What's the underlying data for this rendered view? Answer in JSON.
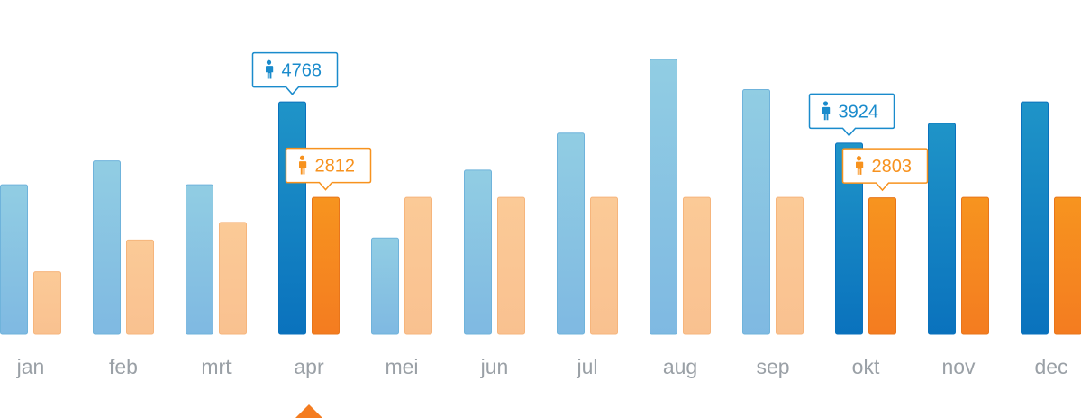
{
  "chart_data": {
    "type": "bar",
    "categories": [
      "jan",
      "feb",
      "mrt",
      "apr",
      "mei",
      "jun",
      "jul",
      "aug",
      "sep",
      "okt",
      "nov",
      "dec"
    ],
    "series": [
      {
        "color": "#1a8bcc",
        "values": [
          3070,
          3560,
          3070,
          4768,
          1980,
          3370,
          4130,
          5640,
          5020,
          3924,
          4330,
          4770
        ]
      },
      {
        "color": "#f7921e",
        "values": [
          1290,
          1940,
          2300,
          2812,
          2812,
          2812,
          2812,
          2812,
          2812,
          2803,
          2812,
          2812
        ]
      }
    ],
    "ylim": [
      0,
      6700
    ],
    "grid": false,
    "highlighted_categories": [
      "apr",
      "okt",
      "nov",
      "dec"
    ],
    "selected_category": "apr",
    "callouts": [
      {
        "category": "apr",
        "series": 0,
        "label": "4768",
        "icon": "person-icon"
      },
      {
        "category": "apr",
        "series": 1,
        "label": "2812",
        "icon": "person-icon"
      },
      {
        "category": "okt",
        "series": 0,
        "label": "3924",
        "icon": "person-icon"
      },
      {
        "category": "okt",
        "series": 1,
        "label": "2803",
        "icon": "person-icon"
      }
    ]
  }
}
